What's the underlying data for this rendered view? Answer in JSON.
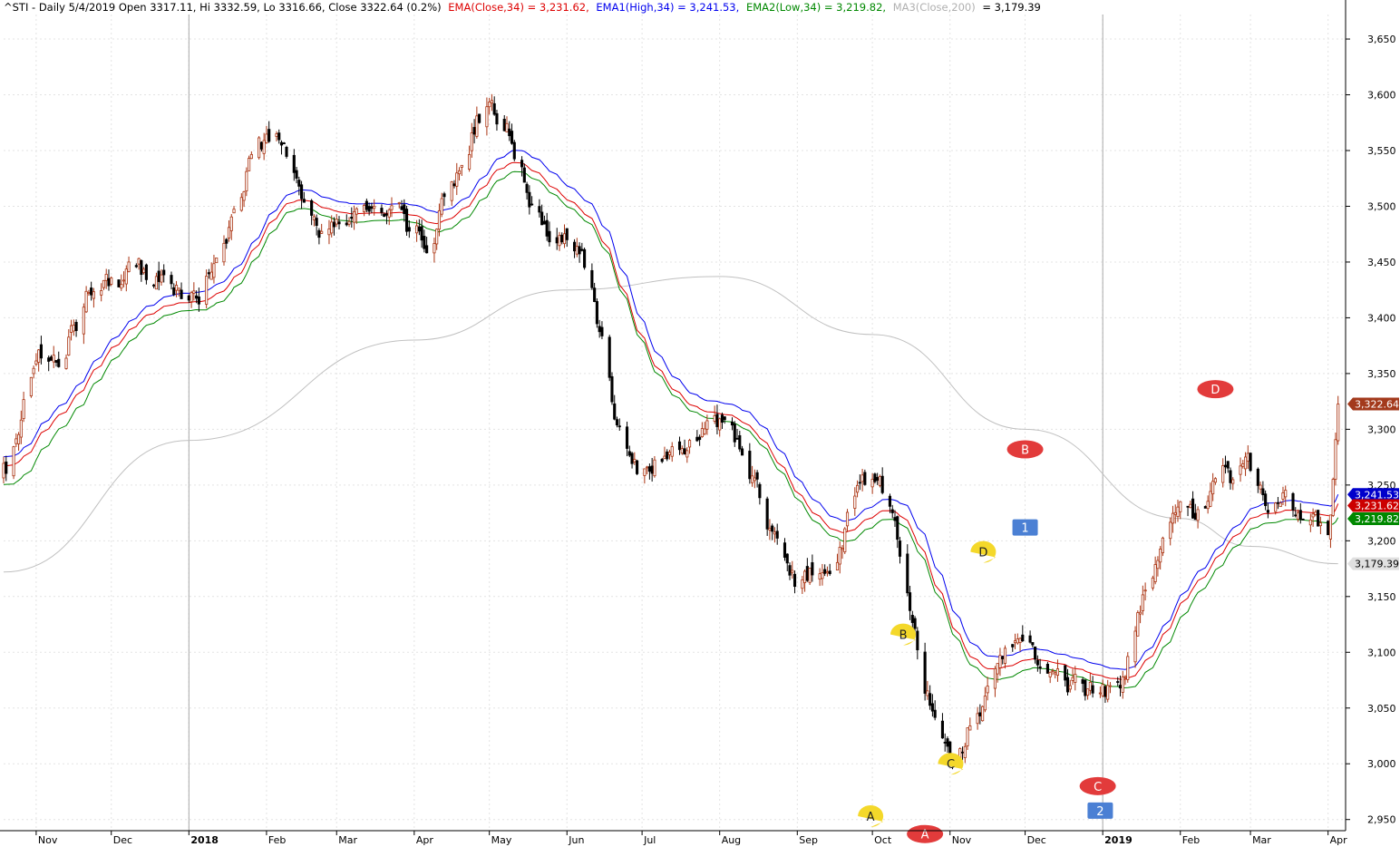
{
  "header": {
    "symbol_info": "^STI - Daily 5/4/2019 Open 3317.11, Hi 3332.59, Lo 3316.66, Close 3322.64 (0.2%)",
    "ema_close": "EMA(Close,34) = 3,231.62,",
    "ema1_high": "EMA1(High,34) = 3,241.53,",
    "ema2_low": "EMA2(Low,34) = 3,219.82,",
    "ma3_label": "MA3(Close,200)",
    "ma3_value": "= 3,179.39"
  },
  "colors": {
    "ema_close": "#dd0000",
    "ema_high": "#0000ee",
    "ema_low": "#008800",
    "ma200": "#c0c0c0",
    "candle_up": "#aa3311",
    "candle_down": "#000000",
    "last_price_tag": "#a33a1c",
    "annot_red": "#e23b3b",
    "annot_yellow": "#f4d82a",
    "annot_blue": "#4b80d4"
  },
  "chart_data": {
    "type": "candlestick",
    "symbol": "^STI",
    "x_axis": {
      "labels": [
        "Nov",
        "Dec",
        "2018",
        "Feb",
        "Mar",
        "Apr",
        "May",
        "Jun",
        "Jul",
        "Aug",
        "Sep",
        "Oct",
        "Nov",
        "Dec",
        "2019",
        "Feb",
        "Mar",
        "Apr"
      ],
      "label_positions_index": [
        0,
        1,
        2,
        3,
        4,
        5,
        6,
        7,
        8,
        9,
        10,
        11,
        12,
        13,
        14,
        15,
        16,
        17
      ]
    },
    "y_axis": {
      "ticks": [
        2950,
        3000,
        3050,
        3100,
        3150,
        3200,
        3250,
        3300,
        3350,
        3400,
        3450,
        3500,
        3550,
        3600,
        3650
      ],
      "tick_labels": [
        "2,950",
        "3,000",
        "3,050",
        "3,100",
        "3,150",
        "3,200",
        "3,250",
        "3,300",
        "3,350",
        "3,400",
        "3,450",
        "3,500",
        "3,550",
        "3,600",
        "3,650"
      ],
      "ylim": [
        2940,
        3672
      ]
    },
    "anchors": {
      "dates": [
        "2017-10-19",
        "2017-11-01",
        "2017-12-01",
        "2018-01-01",
        "2018-02-01",
        "2018-03-01",
        "2018-04-01",
        "2018-05-01",
        "2018-06-01",
        "2018-07-01",
        "2018-08-01",
        "2018-09-01",
        "2018-10-01",
        "2018-11-01",
        "2018-12-01",
        "2019-01-01",
        "2019-02-01",
        "2019-03-01",
        "2019-04-01",
        "2019-04-05"
      ],
      "close": [
        3260,
        3370,
        3430,
        3430,
        3560,
        3470,
        3460,
        3590,
        3460,
        3260,
        3300,
        3150,
        3250,
        3030,
        3100,
        3060,
        3210,
        3250,
        3210,
        3322.64
      ]
    },
    "series": [
      {
        "name": "EMA(Close,34)",
        "last": 3231.62,
        "label": "3,231.62"
      },
      {
        "name": "EMA1(High,34)",
        "last": 3241.53,
        "label": "3,241.53"
      },
      {
        "name": "EMA2(Low,34)",
        "last": 3219.82,
        "label": "3,219.82"
      },
      {
        "name": "MA3(Close,200)",
        "last": 3179.39,
        "label": "3,179.39"
      }
    ],
    "last_close": 3322.64,
    "last_close_label": "3,322.64",
    "annotations": [
      {
        "text": "A",
        "style": "yellow",
        "date": "2018-10-01",
        "price": 2953
      },
      {
        "text": "B",
        "style": "yellow",
        "date": "2018-10-14",
        "price": 3116
      },
      {
        "text": "C",
        "style": "yellow",
        "date": "2018-11-02",
        "price": 3000
      },
      {
        "text": "D",
        "style": "yellow",
        "date": "2018-11-15",
        "price": 3190
      },
      {
        "text": "A",
        "style": "red",
        "date": "2018-10-22",
        "price": 2937
      },
      {
        "text": "B",
        "style": "red",
        "date": "2018-12-01",
        "price": 3282
      },
      {
        "text": "C",
        "style": "red",
        "date": "2018-12-30",
        "price": 2980
      },
      {
        "text": "D",
        "style": "red",
        "date": "2019-02-15",
        "price": 3336
      },
      {
        "text": "1",
        "style": "blue",
        "date": "2018-12-01",
        "price": 3212
      },
      {
        "text": "2",
        "style": "blue",
        "date": "2018-12-31",
        "price": 2958
      }
    ],
    "grid": true
  }
}
